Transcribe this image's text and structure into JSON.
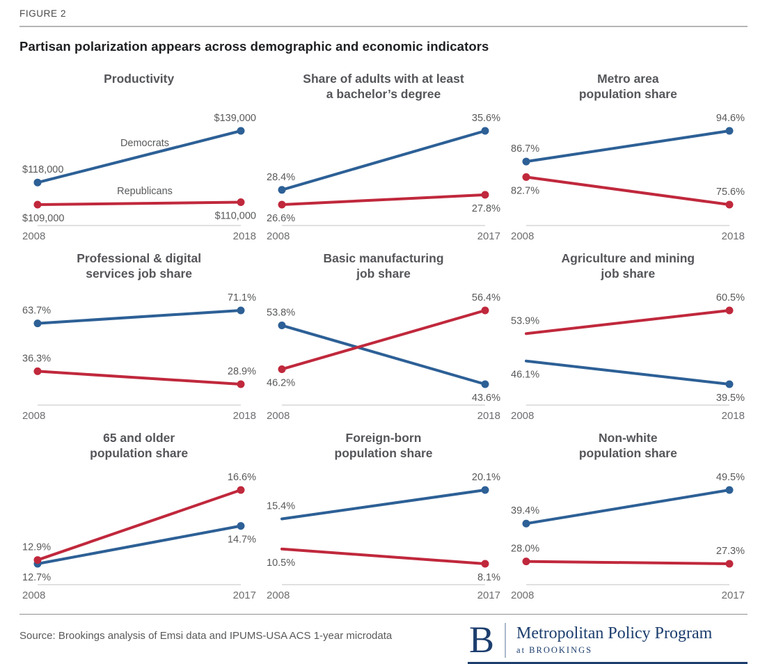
{
  "figure_label": "FIGURE 2",
  "title": "Partisan polarization appears across demographic and economic indicators",
  "colors": {
    "democrat": "#2d6096",
    "republican": "#c0283c",
    "axis_line": "#d6d6d6",
    "value_label": "#58595b",
    "year_label": "#6d6e71",
    "brand_navy": "#1c3e6e"
  },
  "legend": {
    "democrat": "Democrats",
    "republican": "Republicans"
  },
  "chart_data": [
    {
      "type": "line",
      "title_lines": [
        "Productivity"
      ],
      "slug": "productivity",
      "categories": [
        "2008",
        "2018"
      ],
      "series": [
        {
          "name": "Democrats",
          "party": "democrat",
          "values": [
            118000,
            139000
          ],
          "labels": [
            "$118,000",
            "$139,000"
          ],
          "label_pos": [
            "above",
            "above"
          ],
          "show_name": true,
          "start_marker": true
        },
        {
          "name": "Republicans",
          "party": "republican",
          "values": [
            109000,
            110000
          ],
          "labels": [
            "$109,000",
            "$110,000"
          ],
          "label_pos": [
            "below",
            "below"
          ],
          "show_name": true,
          "start_marker": true
        }
      ]
    },
    {
      "type": "line",
      "title_lines": [
        "Share of adults with at least",
        "a bachelor’s degree"
      ],
      "slug": "bachelors-degree",
      "categories": [
        "2008",
        "2017"
      ],
      "series": [
        {
          "name": "Democrats",
          "party": "democrat",
          "values": [
            28.4,
            35.6
          ],
          "labels": [
            "28.4%",
            "35.6%"
          ],
          "label_pos": [
            "above",
            "above"
          ],
          "show_name": false,
          "start_marker": true
        },
        {
          "name": "Republicans",
          "party": "republican",
          "values": [
            26.6,
            27.8
          ],
          "labels": [
            "26.6%",
            "27.8%"
          ],
          "label_pos": [
            "below",
            "below"
          ],
          "show_name": false,
          "start_marker": true
        }
      ]
    },
    {
      "type": "line",
      "title_lines": [
        "Metro area",
        "population share"
      ],
      "slug": "metro-area-population-share",
      "categories": [
        "2008",
        "2018"
      ],
      "series": [
        {
          "name": "Democrats",
          "party": "democrat",
          "values": [
            86.7,
            94.6
          ],
          "labels": [
            "86.7%",
            "94.6%"
          ],
          "label_pos": [
            "above",
            "above"
          ],
          "show_name": false,
          "start_marker": true
        },
        {
          "name": "Republicans",
          "party": "republican",
          "values": [
            82.7,
            75.6
          ],
          "labels": [
            "82.7%",
            "75.6%"
          ],
          "label_pos": [
            "below",
            "above"
          ],
          "show_name": false,
          "start_marker": true
        }
      ]
    },
    {
      "type": "line",
      "title_lines": [
        "Professional & digital",
        "services job share"
      ],
      "slug": "professional-digital-services-job-share",
      "categories": [
        "2008",
        "2018"
      ],
      "series": [
        {
          "name": "Democrats",
          "party": "democrat",
          "values": [
            63.7,
            71.1
          ],
          "labels": [
            "63.7%",
            "71.1%"
          ],
          "label_pos": [
            "above",
            "above"
          ],
          "show_name": false,
          "start_marker": true
        },
        {
          "name": "Republicans",
          "party": "republican",
          "values": [
            36.3,
            28.9
          ],
          "labels": [
            "36.3%",
            "28.9%"
          ],
          "label_pos": [
            "above",
            "above"
          ],
          "show_name": false,
          "start_marker": true
        }
      ]
    },
    {
      "type": "line",
      "title_lines": [
        "Basic manufacturing",
        "job share"
      ],
      "slug": "basic-manufacturing-job-share",
      "categories": [
        "2008",
        "2018"
      ],
      "series": [
        {
          "name": "Democrats",
          "party": "democrat",
          "values": [
            53.8,
            43.6
          ],
          "labels": [
            "53.8%",
            "43.6%"
          ],
          "label_pos": [
            "above",
            "below"
          ],
          "show_name": false,
          "start_marker": true
        },
        {
          "name": "Republicans",
          "party": "republican",
          "values": [
            46.2,
            56.4
          ],
          "labels": [
            "46.2%",
            "56.4%"
          ],
          "label_pos": [
            "below",
            "above"
          ],
          "show_name": false,
          "start_marker": true
        }
      ]
    },
    {
      "type": "line",
      "title_lines": [
        "Agriculture and mining",
        "job share"
      ],
      "slug": "agriculture-and-mining-job-share",
      "categories": [
        "2008",
        "2018"
      ],
      "series": [
        {
          "name": "Democrats",
          "party": "democrat",
          "values": [
            46.1,
            39.5
          ],
          "labels": [
            "46.1%",
            "39.5%"
          ],
          "label_pos": [
            "below",
            "below"
          ],
          "show_name": false,
          "start_marker": false
        },
        {
          "name": "Republicans",
          "party": "republican",
          "values": [
            53.9,
            60.5
          ],
          "labels": [
            "53.9%",
            "60.5%"
          ],
          "label_pos": [
            "above",
            "above"
          ],
          "show_name": false,
          "start_marker": false
        }
      ]
    },
    {
      "type": "line",
      "title_lines": [
        "65 and older",
        "population share"
      ],
      "slug": "65-and-older-population-share",
      "categories": [
        "2008",
        "2017"
      ],
      "series": [
        {
          "name": "Democrats",
          "party": "democrat",
          "values": [
            12.7,
            14.7
          ],
          "labels": [
            "12.7%",
            "14.7%"
          ],
          "label_pos": [
            "below",
            "below"
          ],
          "show_name": false,
          "start_marker": true
        },
        {
          "name": "Republicans",
          "party": "republican",
          "values": [
            12.9,
            16.6
          ],
          "labels": [
            "12.9%",
            "16.6%"
          ],
          "label_pos": [
            "above",
            "above"
          ],
          "show_name": false,
          "start_marker": true
        }
      ]
    },
    {
      "type": "line",
      "title_lines": [
        "Foreign-born",
        "population share"
      ],
      "slug": "foreign-born-population-share",
      "categories": [
        "2008",
        "2017"
      ],
      "series": [
        {
          "name": "Democrats",
          "party": "democrat",
          "values": [
            15.4,
            20.1
          ],
          "labels": [
            "15.4%",
            "20.1%"
          ],
          "label_pos": [
            "above",
            "above"
          ],
          "show_name": false,
          "start_marker": false
        },
        {
          "name": "Republicans",
          "party": "republican",
          "values": [
            10.5,
            8.1
          ],
          "labels": [
            "10.5%",
            "8.1%"
          ],
          "label_pos": [
            "below",
            "below"
          ],
          "show_name": false,
          "start_marker": false
        }
      ]
    },
    {
      "type": "line",
      "title_lines": [
        "Non-white",
        "population share"
      ],
      "slug": "non-white-population-share",
      "categories": [
        "2008",
        "2017"
      ],
      "series": [
        {
          "name": "Democrats",
          "party": "democrat",
          "values": [
            39.4,
            49.5
          ],
          "labels": [
            "39.4%",
            "49.5%"
          ],
          "label_pos": [
            "above",
            "above"
          ],
          "show_name": false,
          "start_marker": true
        },
        {
          "name": "Republicans",
          "party": "republican",
          "values": [
            28.0,
            27.3
          ],
          "labels": [
            "28.0%",
            "27.3%"
          ],
          "label_pos": [
            "above",
            "above"
          ],
          "show_name": false,
          "start_marker": true
        }
      ]
    }
  ],
  "footer": {
    "source": "Source: Brookings analysis of Emsi data and IPUMS-USA ACS 1-year microdata",
    "logo": {
      "initial": "B",
      "program": "Metropolitan Policy Program",
      "sub": "at BROOKINGS"
    }
  }
}
